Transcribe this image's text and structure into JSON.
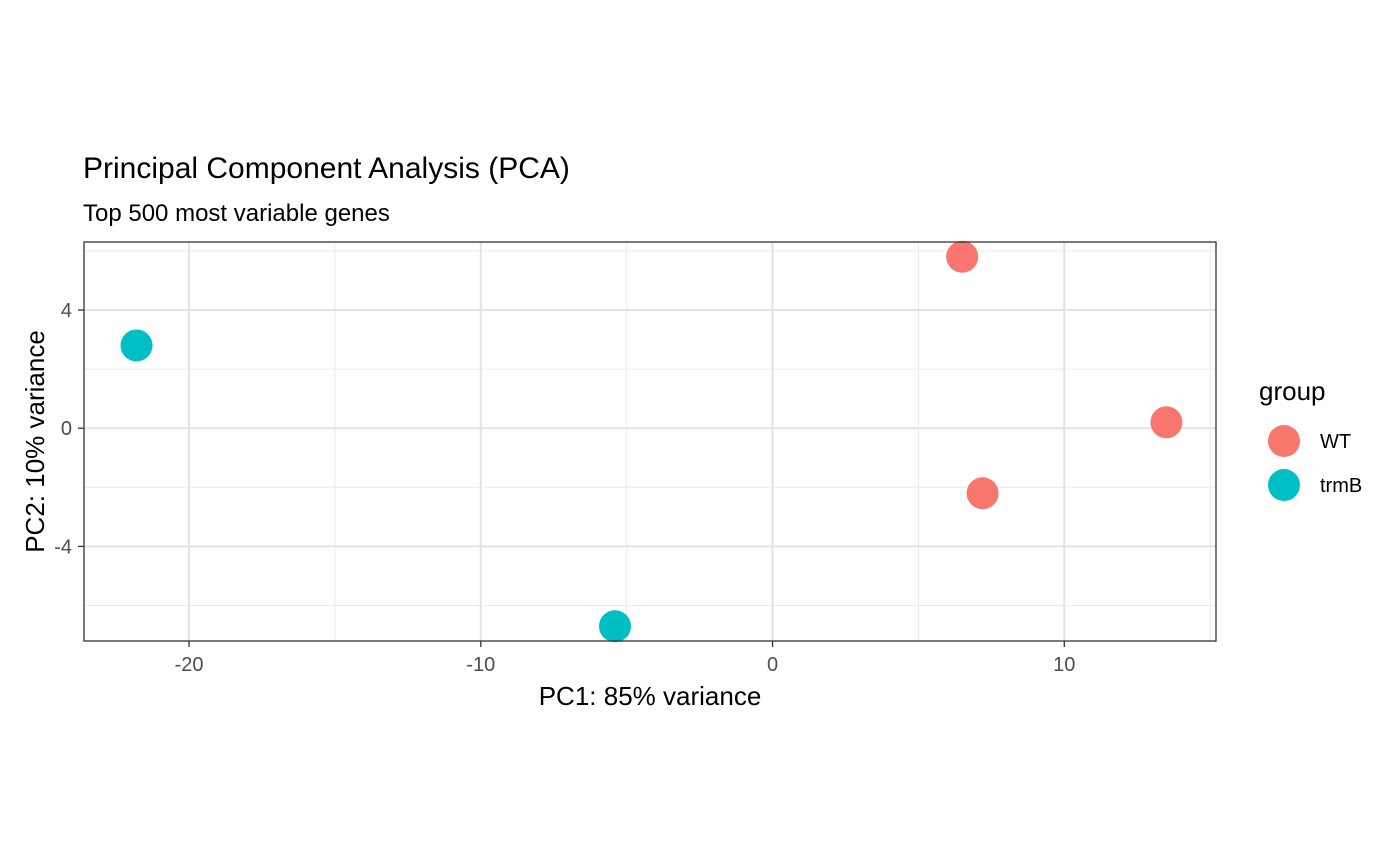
{
  "chart_data": {
    "type": "scatter",
    "title": "Principal Component Analysis (PCA)",
    "subtitle": "Top 500 most variable genes",
    "xlabel": "PC1: 85% variance",
    "ylabel": "PC2: 10% variance",
    "xlim": [
      -23.6,
      15.2
    ],
    "ylim": [
      -7.2,
      6.3
    ],
    "x_ticks": [
      -20,
      -10,
      0,
      10
    ],
    "y_ticks": [
      -4,
      0,
      4
    ],
    "x_minor": [
      -15,
      -5,
      5,
      15
    ],
    "y_minor": [
      -6,
      -2,
      2,
      6
    ],
    "grid": true,
    "legend": {
      "title": "group",
      "placement": "right"
    },
    "series": [
      {
        "name": "WT",
        "color": "#F8766D",
        "points": [
          {
            "x": 6.5,
            "y": 5.8
          },
          {
            "x": 13.5,
            "y": 0.2
          },
          {
            "x": 7.2,
            "y": -2.2
          }
        ]
      },
      {
        "name": "trmB",
        "color": "#00BFC4",
        "points": [
          {
            "x": -21.8,
            "y": 2.8
          },
          {
            "x": -5.4,
            "y": -6.7
          }
        ]
      }
    ]
  }
}
